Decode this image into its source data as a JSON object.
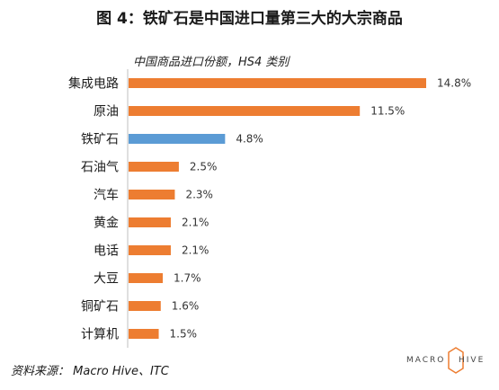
{
  "title": "图 4：铁矿石是中国进口量第三大的大宗商品",
  "source": "资料来源： Macro Hive、ITC",
  "logo": {
    "left_text": "MACRO",
    "right_text": "HIVE"
  },
  "colors": {
    "orange": "#ED7D31",
    "blue": "#5B9BD5",
    "axis": "#bfbfbf"
  },
  "chart_data": {
    "type": "bar",
    "orientation": "horizontal",
    "title": "中国商品进口份额，HS4 类别",
    "categories": [
      "集成电路",
      "原油",
      "铁矿石",
      "石油气",
      "汽车",
      "黄金",
      "电话",
      "大豆",
      "铜矿石",
      "计算机"
    ],
    "values": [
      14.8,
      11.5,
      4.8,
      2.5,
      2.3,
      2.1,
      2.1,
      1.7,
      1.6,
      1.5
    ],
    "value_labels": [
      "14.8%",
      "11.5%",
      "4.8%",
      "2.5%",
      "2.3%",
      "2.1%",
      "2.1%",
      "1.7%",
      "1.6%",
      "1.5%"
    ],
    "highlight": "铁矿石",
    "xlim": [
      0,
      15
    ],
    "grid": false,
    "legend": "none"
  }
}
